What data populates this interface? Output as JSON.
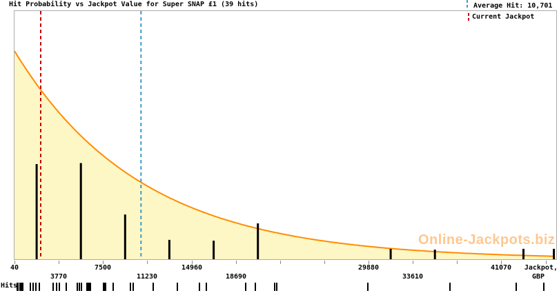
{
  "title": "Hit Probability vs Jackpot Value for Super SNAP £1 (39 hits)",
  "watermark": "Online-Jackpots.biz",
  "legend": {
    "average_hit": {
      "label": "Average Hit: 10,701",
      "color": "#3d9bc8"
    },
    "current_jackpot": {
      "label": "Current Jackpot",
      "color": "#c40000"
    }
  },
  "hits_row": {
    "label": "Hits"
  },
  "x_axis": {
    "label_line1": "Jackpot,",
    "label_line2": "GBP"
  },
  "colors": {
    "curve": "#ff8c00",
    "fill": "#fdf7c5",
    "bars": "#000000",
    "average_line": "#3d9bc8",
    "jackpot_line": "#c40000",
    "border": "#ababab",
    "tick": "#8a8a8a",
    "watermark": "rgba(255,153,51,0.55)"
  },
  "chart_data": {
    "type": "area",
    "title": "Hit Probability vs Jackpot Value for Super SNAP £1 (39 hits)",
    "xlabel": "Jackpot, GBP",
    "ylabel": "",
    "grid": false,
    "legend_position": "top-right",
    "x_range": [
      40,
      45700
    ],
    "x_tick_start": 40,
    "x_tick_step": 3730,
    "x_tick_count": 13,
    "x_labels_row1": [
      "40",
      "7500",
      "14960",
      "29880",
      "41070"
    ],
    "x_labels_row1_values": [
      40,
      7500,
      14960,
      29880,
      41070
    ],
    "x_labels_row2": [
      "3770",
      "11230",
      "18690",
      "33610"
    ],
    "x_labels_row2_values": [
      3770,
      11230,
      18690,
      33610
    ],
    "curve": {
      "shape": "exponential_decay",
      "start_gbp": 40,
      "mean_gbp": 10701,
      "peak_rel_height": 0.839
    },
    "average_hit_gbp": 10701,
    "current_jackpot_gbp": 2250,
    "impulses": {
      "centers_gbp": [
        1905,
        5635,
        9365,
        13095,
        16825,
        20555,
        31745,
        35475,
        42935,
        45500
      ],
      "rel_heights": [
        0.457,
        0.462,
        0.215,
        0.093,
        0.089,
        0.172,
        0.05,
        0.046,
        0.05,
        0.05
      ]
    },
    "rug_hits_gbp": [
      297,
      355,
      529,
      588,
      646,
      762,
      1402,
      1635,
      1868,
      2159,
      3322,
      3613,
      3846,
      4428,
      5359,
      5533,
      5708,
      6173,
      6231,
      6348,
      6464,
      7570,
      7628,
      7744,
      8384,
      9839,
      10072,
      11760,
      13738,
      15600,
      16182,
      19499,
      20314,
      21943,
      22118,
      29799,
      36723,
      42309,
      44637
    ],
    "total_hits": 39
  }
}
